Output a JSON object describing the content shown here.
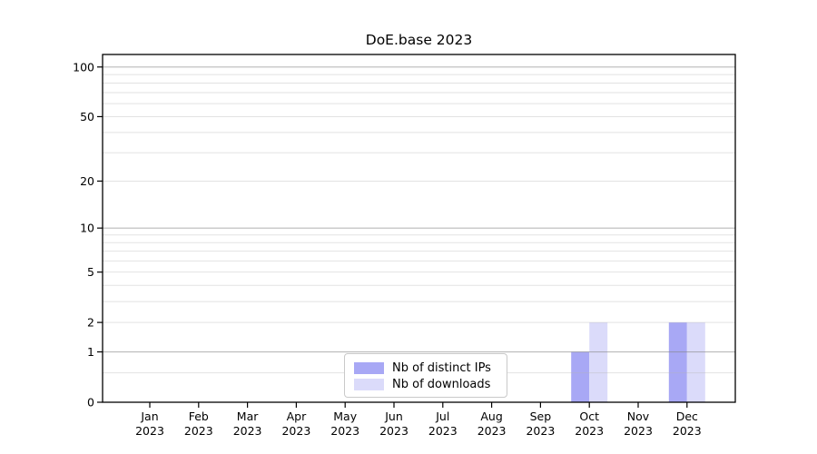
{
  "title": "DoE.base 2023",
  "chart_data": {
    "type": "bar",
    "title": "DoE.base 2023",
    "categories": [
      "Jan",
      "Feb",
      "Mar",
      "Apr",
      "May",
      "Jun",
      "Jul",
      "Aug",
      "Sep",
      "Oct",
      "Nov",
      "Dec"
    ],
    "year_label": "2023",
    "series": [
      {
        "name": "Nb of distinct IPs",
        "color": "#a8a8f5",
        "values": [
          0,
          0,
          0,
          0,
          0,
          0,
          0,
          0,
          0,
          1,
          0,
          2
        ]
      },
      {
        "name": "Nb of downloads",
        "color": "#dbdbfa",
        "values": [
          0,
          0,
          0,
          0,
          0,
          0,
          0,
          0,
          0,
          2,
          0,
          2
        ]
      }
    ],
    "xlabel": "",
    "ylabel": "",
    "y_ticks": [
      0,
      1,
      2,
      5,
      10,
      20,
      50,
      100
    ],
    "y_major_gridlines": [
      1,
      10,
      100
    ],
    "y_minor_gridlines": [
      0.5,
      2,
      3,
      4,
      5,
      6,
      7,
      8,
      9,
      20,
      30,
      40,
      50,
      60,
      70,
      80,
      90
    ],
    "ylim": [
      0,
      119
    ],
    "scale": "log1p",
    "grid": true,
    "legend_position": "inside-bottom-center",
    "colors": {
      "axis": "#000000",
      "major_grid": "#c6c6c6",
      "minor_grid": "#e9e9e9",
      "text": "#000000"
    }
  }
}
